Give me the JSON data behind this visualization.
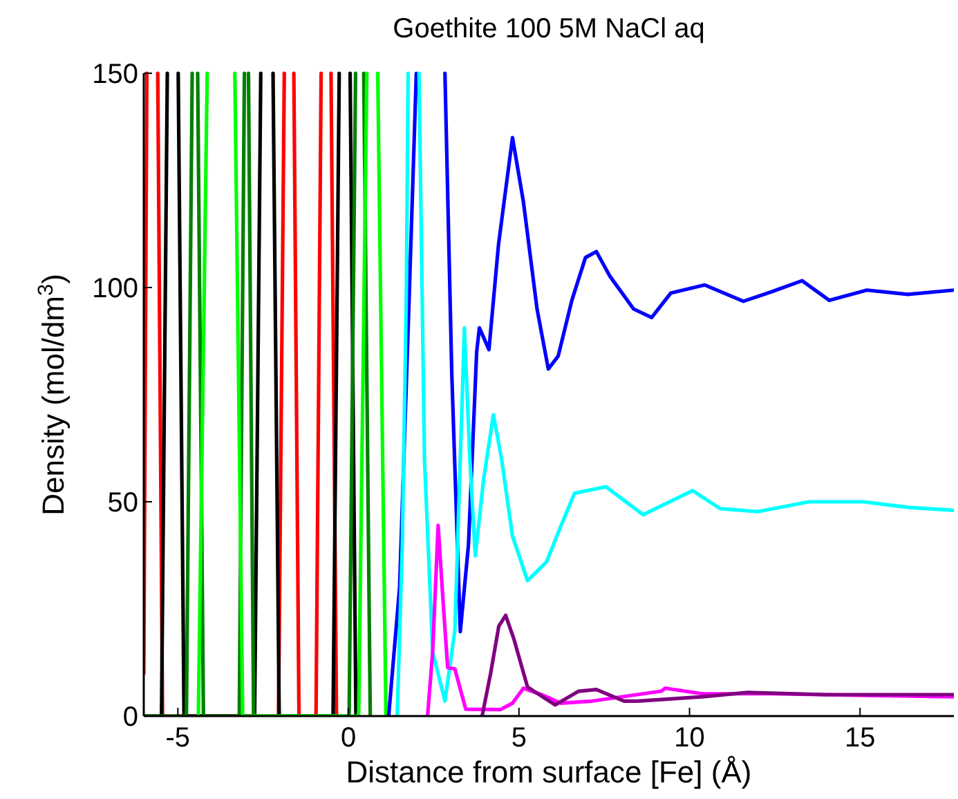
{
  "chart_data": {
    "type": "line",
    "title": "Goethite 100 5M NaCl aq",
    "xlabel": "Distance from surface [Fe] (Å)",
    "ylabel": "Density (mol/dm$^{3}$)",
    "xlim": [
      -6,
      17.75
    ],
    "ylim": [
      0,
      150
    ],
    "xticks": [
      -5,
      0,
      5,
      10,
      15
    ],
    "yticks": [
      0,
      50,
      100,
      150
    ],
    "grid": false,
    "line_style": "solid",
    "series": [
      {
        "color": "#ff0000",
        "x": [
          -6,
          -5.91,
          -5.75,
          -5.59,
          -5.45,
          -2.05,
          -1.88,
          -1.74,
          -1.6,
          -1.45,
          -0.95,
          -0.8,
          -0.65,
          -0.51,
          -0.35
        ],
        "values": [
          10,
          150,
          null,
          150,
          0,
          0,
          150,
          null,
          150,
          0,
          0,
          150,
          null,
          150,
          0
        ]
      },
      {
        "color": "#000000",
        "x": [
          -6,
          -5.48,
          -5.31,
          -5.15,
          -4.99,
          -4.82,
          -2.75,
          -2.57,
          -2.39,
          -2.21,
          -2.03,
          -0.45,
          -0.27,
          -0.11,
          0.05,
          0.22
        ],
        "values": [
          0,
          0,
          150,
          null,
          150,
          0,
          0,
          150,
          null,
          150,
          0,
          0,
          150,
          null,
          150,
          0
        ]
      },
      {
        "color": "#008000",
        "x": [
          -6,
          -4.75,
          -4.58,
          -4.5,
          -4.42,
          -4.25,
          -3.2,
          -3.05,
          -2.99,
          -2.93,
          -2.78,
          0.02,
          0.21,
          0.33,
          0.45,
          0.64
        ],
        "values": [
          0,
          0,
          150,
          null,
          150,
          0,
          0,
          150,
          null,
          150,
          0,
          0,
          150,
          null,
          150,
          0
        ]
      },
      {
        "color": "#00ff00",
        "x": [
          -4.4,
          -4.14,
          -3.74,
          -3.33,
          -3.1,
          0.3,
          0.54,
          0.7,
          0.86,
          1.1
        ],
        "values": [
          0,
          150,
          null,
          150,
          0,
          0,
          150,
          null,
          150,
          0
        ]
      },
      {
        "color": "#0000ff",
        "x": [
          1.18,
          1.5,
          1.79,
          1.99,
          2.4,
          2.83,
          3.03,
          3.28,
          3.52,
          3.76,
          3.84,
          4.12,
          4.4,
          4.81,
          5.13,
          5.53,
          5.86,
          6.15,
          6.55,
          6.95,
          7.27,
          7.67,
          8.36,
          8.89,
          9.45,
          10.45,
          11.58,
          12.4,
          13.3,
          14.1,
          15.2,
          16.4,
          17.75
        ],
        "values": [
          0,
          30,
          100,
          150,
          null,
          150,
          80,
          19.7,
          40,
          85,
          90.6,
          85.5,
          110,
          135,
          120,
          95,
          81,
          84,
          97,
          107,
          108.4,
          102.6,
          95,
          93,
          98.7,
          100.6,
          96.8,
          99,
          101.6,
          97,
          99.4,
          98.4,
          99.4
        ]
      },
      {
        "color": "#00ffff",
        "x": [
          1.43,
          1.58,
          1.7,
          1.75,
          1.9,
          2.07,
          2.23,
          2.47,
          2.83,
          3.12,
          3.32,
          3.4,
          3.56,
          3.72,
          3.96,
          4.25,
          4.49,
          4.81,
          5.25,
          5.81,
          6.21,
          6.63,
          7.55,
          8.64,
          10.09,
          10.9,
          12,
          13.5,
          15.1,
          16.43,
          17.75
        ],
        "values": [
          0,
          40,
          100,
          150,
          null,
          150,
          60,
          15,
          3.5,
          20,
          70,
          90.6,
          60,
          37.4,
          55,
          70.3,
          60,
          42,
          31.6,
          36,
          44,
          52,
          53.5,
          47,
          52.6,
          48.4,
          47.7,
          50,
          50,
          48.7,
          48
        ]
      },
      {
        "color": "#ff00ff",
        "x": [
          2.32,
          2.47,
          2.63,
          2.79,
          2.91,
          3.12,
          3.44,
          4.45,
          4.81,
          5.13,
          5.66,
          6.23,
          7.15,
          9.17,
          9.29,
          10.38,
          12.4,
          15.2,
          17.75
        ],
        "values": [
          0,
          15,
          44.5,
          25,
          11.3,
          11,
          1.6,
          1.5,
          3,
          6.5,
          5,
          3,
          3.5,
          5.8,
          6.5,
          5.2,
          5.2,
          4.8,
          4.5
        ]
      },
      {
        "color": "#800080",
        "x": [
          3.92,
          4.17,
          4.41,
          4.61,
          4.85,
          5.25,
          6.06,
          6.75,
          7.27,
          8.08,
          8.48,
          10.37,
          11.7,
          14,
          17.75
        ],
        "values": [
          0,
          10,
          21,
          23.5,
          18,
          6.8,
          2.6,
          5.8,
          6.2,
          3.5,
          3.5,
          4.5,
          5.5,
          5,
          5
        ]
      }
    ]
  }
}
